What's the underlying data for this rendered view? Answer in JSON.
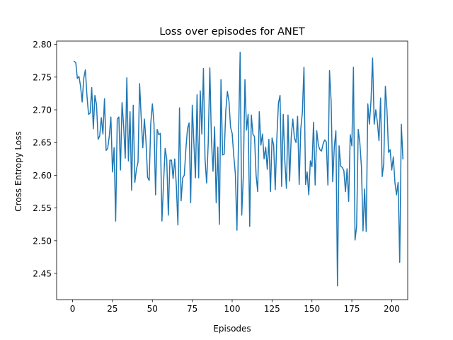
{
  "chart_data": {
    "type": "line",
    "title": "Loss over episodes for ANET",
    "xlabel": "Episodes",
    "ylabel": "Cross Entropy Loss",
    "xlim": [
      -10,
      210
    ],
    "ylim": [
      2.41,
      2.805
    ],
    "x_ticks": [
      0,
      25,
      50,
      75,
      100,
      125,
      150,
      175,
      200
    ],
    "y_ticks": [
      2.45,
      2.5,
      2.55,
      2.6,
      2.65,
      2.7,
      2.75,
      2.8
    ],
    "x_tick_labels": [
      "0",
      "25",
      "50",
      "75",
      "100",
      "125",
      "150",
      "175",
      "200"
    ],
    "y_tick_labels": [
      "2.45",
      "2.50",
      "2.55",
      "2.60",
      "2.65",
      "2.70",
      "2.75",
      "2.80"
    ],
    "grid": false,
    "legend": "none",
    "line_color": "#1f77b4",
    "series": [
      {
        "x_start": 1,
        "x_step": 1,
        "values": [
          2.774,
          2.772,
          2.748,
          2.751,
          2.736,
          2.712,
          2.748,
          2.761,
          2.722,
          2.693,
          2.695,
          2.734,
          2.671,
          2.722,
          2.708,
          2.655,
          2.66,
          2.688,
          2.663,
          2.717,
          2.638,
          2.641,
          2.66,
          2.689,
          2.605,
          2.642,
          2.53,
          2.686,
          2.689,
          2.608,
          2.711,
          2.675,
          2.626,
          2.749,
          2.622,
          2.697,
          2.577,
          2.707,
          2.589,
          2.609,
          2.62,
          2.74,
          2.688,
          2.642,
          2.686,
          2.652,
          2.597,
          2.592,
          2.68,
          2.709,
          2.679,
          2.57,
          2.67,
          2.662,
          2.664,
          2.53,
          2.588,
          2.641,
          2.625,
          2.539,
          2.623,
          2.623,
          2.595,
          2.625,
          2.585,
          2.524,
          2.703,
          2.561,
          2.596,
          2.6,
          2.64,
          2.671,
          2.68,
          2.558,
          2.707,
          2.65,
          2.596,
          2.723,
          2.596,
          2.729,
          2.663,
          2.763,
          2.625,
          2.588,
          2.649,
          2.764,
          2.655,
          2.606,
          2.674,
          2.558,
          2.643,
          2.525,
          2.746,
          2.631,
          2.632,
          2.698,
          2.728,
          2.713,
          2.673,
          2.664,
          2.63,
          2.602,
          2.516,
          2.66,
          2.788,
          2.539,
          2.6,
          2.746,
          2.669,
          2.693,
          2.522,
          2.692,
          2.663,
          2.659,
          2.6,
          2.575,
          2.697,
          2.646,
          2.663,
          2.625,
          2.643,
          2.609,
          2.655,
          2.575,
          2.657,
          2.646,
          2.578,
          2.657,
          2.71,
          2.722,
          2.583,
          2.693,
          2.622,
          2.58,
          2.692,
          2.591,
          2.658,
          2.686,
          2.657,
          2.65,
          2.69,
          2.586,
          2.671,
          2.696,
          2.765,
          2.586,
          2.605,
          2.57,
          2.622,
          2.613,
          2.681,
          2.585,
          2.668,
          2.646,
          2.639,
          2.637,
          2.648,
          2.654,
          2.651,
          2.585,
          2.76,
          2.714,
          2.59,
          2.643,
          2.668,
          2.431,
          2.645,
          2.614,
          2.612,
          2.607,
          2.575,
          2.61,
          2.56,
          2.662,
          2.645,
          2.765,
          2.501,
          2.522,
          2.67,
          2.65,
          2.613,
          2.515,
          2.579,
          2.514,
          2.709,
          2.678,
          2.714,
          2.779,
          2.678,
          2.7,
          2.681,
          2.653,
          2.718,
          2.598,
          2.618,
          2.736,
          2.7,
          2.635,
          2.639,
          2.608,
          2.628,
          2.589,
          2.57,
          2.589,
          2.467,
          2.678,
          2.625
        ]
      }
    ]
  }
}
